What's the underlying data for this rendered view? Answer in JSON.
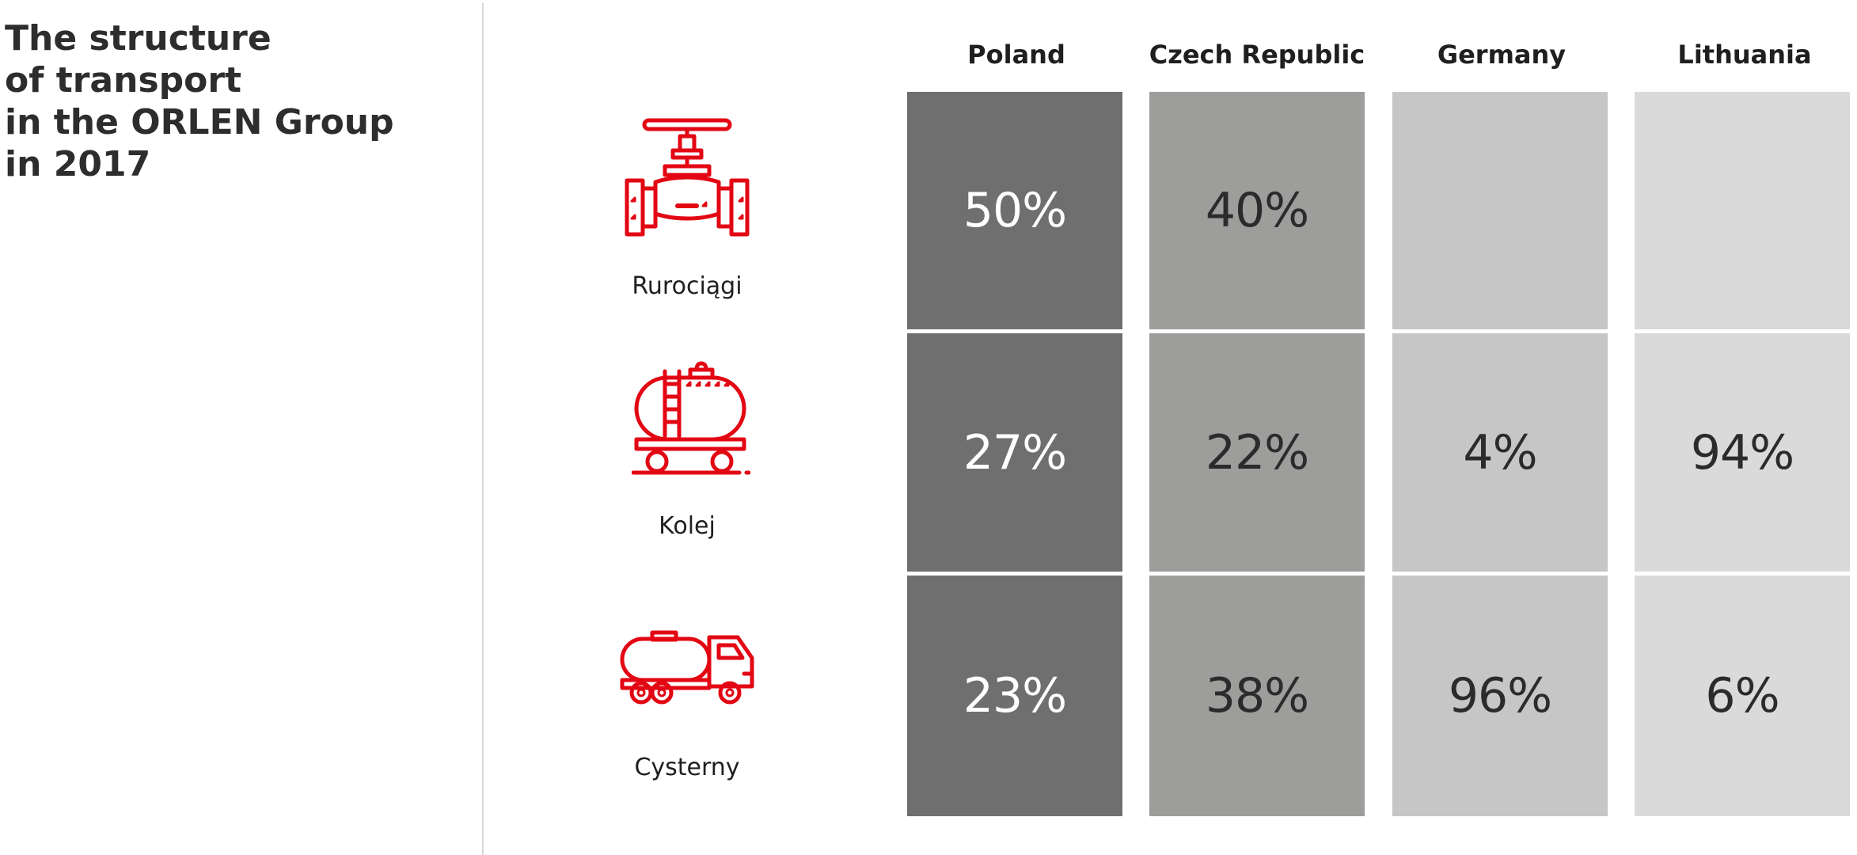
{
  "chart_data": {
    "type": "table",
    "title_lines": [
      "The structure",
      "of transport",
      "in the ORLEN Group",
      "in 2017"
    ],
    "columns": [
      "Poland",
      "Czech Republic",
      "Germany",
      "Lithuania"
    ],
    "rows": [
      {
        "label": "Rurociągi",
        "icon": "pipeline-valve-icon",
        "values": [
          "50%",
          "40%",
          "",
          ""
        ]
      },
      {
        "label": "Kolej",
        "icon": "rail-tank-car-icon",
        "values": [
          "27%",
          "22%",
          "4%",
          "94%"
        ]
      },
      {
        "label": "Cysterny",
        "icon": "tanker-truck-icon",
        "values": [
          "23%",
          "38%",
          "96%",
          "6%"
        ]
      }
    ],
    "cell_colors": [
      "#6f6f6f",
      "#9d9d9c",
      "#c6c6c6",
      "#dadada"
    ],
    "icon_color": "#e30613"
  }
}
